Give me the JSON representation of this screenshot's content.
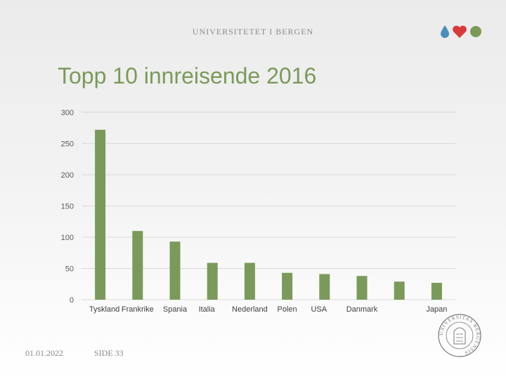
{
  "header": {
    "institution": "UNIVERSITETET I BERGEN"
  },
  "slide": {
    "title": "Topp 10 innreisende 2016"
  },
  "footer": {
    "date": "01.01.2022",
    "page": "SIDE 33"
  },
  "colors": {
    "bar": "#7a9a5a",
    "title": "#7a9a5a",
    "grid": "#d9d9d9"
  },
  "logo": {
    "icons": [
      "drop-icon",
      "heart-icon",
      "circle-icon"
    ],
    "colors": [
      "#4a8fb8",
      "#d83a3a",
      "#7a9a5a"
    ]
  },
  "seal": {
    "text": "UNIVERSITAS BERGENSIS"
  },
  "chart_data": {
    "type": "bar",
    "title": "Topp 10 innreisende 2016",
    "categories": [
      "Tyskland",
      "Frankrike",
      "Spania",
      "Italia",
      "Nederland",
      "Polen",
      "USA",
      "Danmark",
      "",
      "Japan"
    ],
    "values": [
      272,
      110,
      93,
      59,
      59,
      43,
      41,
      38,
      29,
      27
    ],
    "ylim": [
      0,
      300
    ],
    "yticks": [
      0,
      50,
      100,
      150,
      200,
      250,
      300
    ],
    "xlabel": "",
    "ylabel": "",
    "grid": true,
    "legend": "none"
  }
}
